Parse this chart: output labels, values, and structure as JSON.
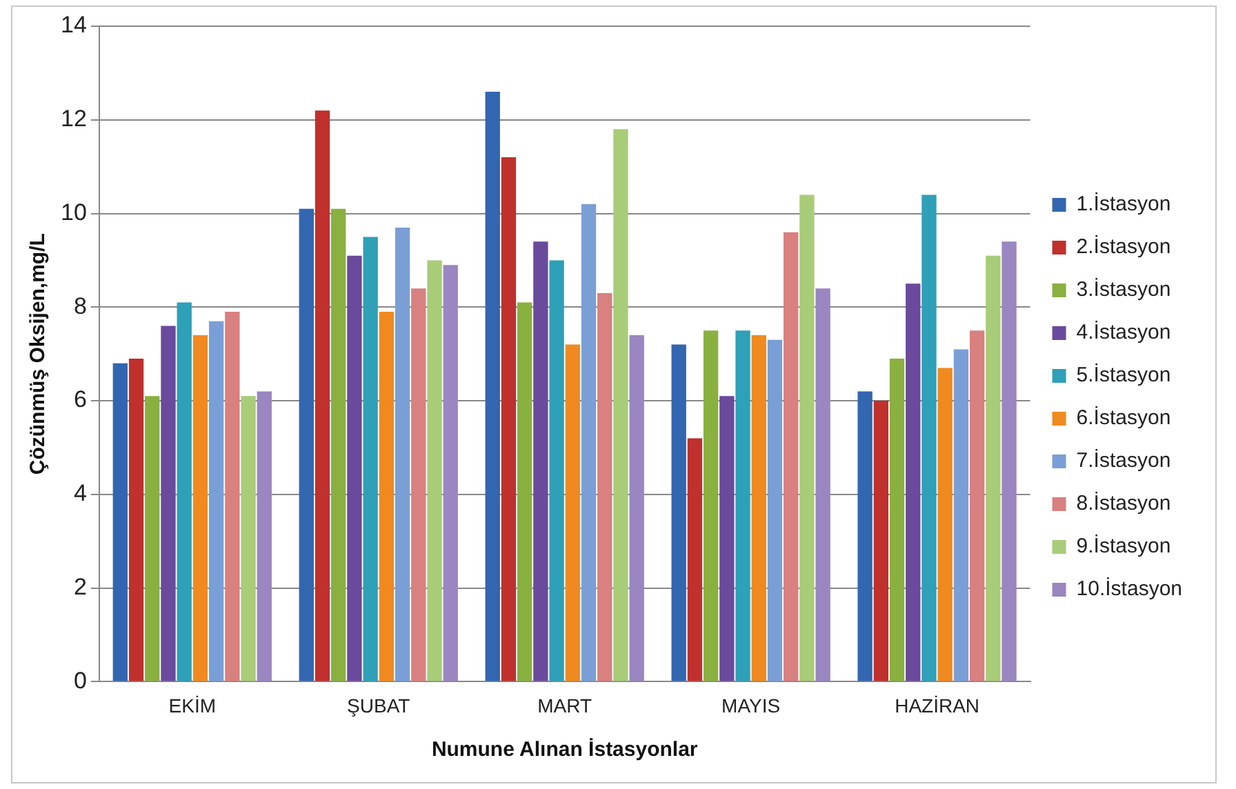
{
  "chart_data": {
    "type": "bar",
    "xlabel": "Numune Alınan İstasyonlar",
    "ylabel": "Çözünmüş Oksijen,mg/L",
    "categories": [
      "EKİM",
      "ŞUBAT",
      "MART",
      "MAYIS",
      "HAZİRAN"
    ],
    "series": [
      {
        "name": "1.İstasyon",
        "color": "#3366b0",
        "values": [
          6.8,
          10.1,
          12.6,
          7.2,
          6.2
        ]
      },
      {
        "name": "2.İstasyon",
        "color": "#c0302c",
        "values": [
          6.9,
          12.2,
          11.2,
          5.2,
          6.0
        ]
      },
      {
        "name": "3.İstasyon",
        "color": "#8ab040",
        "values": [
          6.1,
          10.1,
          8.1,
          7.5,
          6.9
        ]
      },
      {
        "name": "4.İstasyon",
        "color": "#6a4a9c",
        "values": [
          7.6,
          9.1,
          9.4,
          6.1,
          8.5
        ]
      },
      {
        "name": "5.İstasyon",
        "color": "#2ea0b8",
        "values": [
          8.1,
          9.5,
          9.0,
          7.5,
          10.4
        ]
      },
      {
        "name": "6.İstasyon",
        "color": "#f08a20",
        "values": [
          7.4,
          7.9,
          7.2,
          7.4,
          6.7
        ]
      },
      {
        "name": "7.İstasyon",
        "color": "#7a9fd6",
        "values": [
          7.7,
          9.7,
          10.2,
          7.3,
          7.1
        ]
      },
      {
        "name": "8.İstasyon",
        "color": "#d98080",
        "values": [
          7.9,
          8.4,
          8.3,
          9.6,
          7.5
        ]
      },
      {
        "name": "9.İstasyon",
        "color": "#a8cc78",
        "values": [
          6.1,
          9.0,
          11.8,
          10.4,
          9.1
        ]
      },
      {
        "name": "10.İstasyon",
        "color": "#9a86c0",
        "values": [
          6.2,
          8.9,
          7.4,
          8.4,
          9.4
        ]
      }
    ],
    "ylim": [
      0,
      14
    ],
    "yticks": [
      0,
      2,
      4,
      6,
      8,
      10,
      12,
      14
    ],
    "grid": "y",
    "legend": "right"
  }
}
